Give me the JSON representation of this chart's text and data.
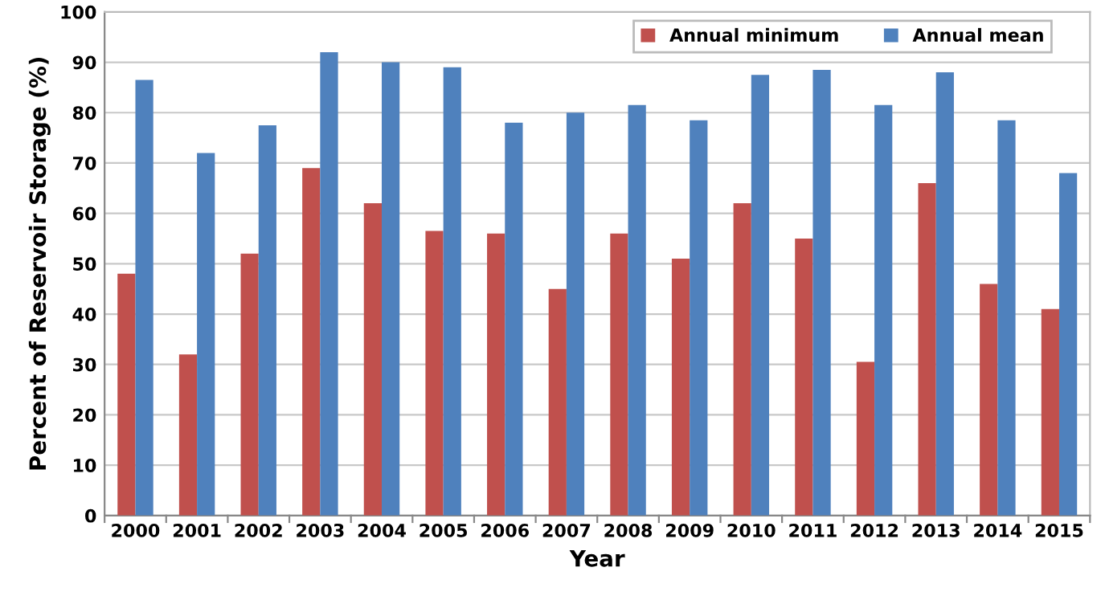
{
  "chart_data": {
    "type": "bar",
    "xlabel": "Year",
    "ylabel": "Percent of Reservoir Storage (%)",
    "categories": [
      "2000",
      "2001",
      "2002",
      "2003",
      "2004",
      "2005",
      "2006",
      "2007",
      "2008",
      "2009",
      "2010",
      "2011",
      "2012",
      "2013",
      "2014",
      "2015"
    ],
    "series": [
      {
        "name": "Annual minimum",
        "color": "#c0504d",
        "values": [
          48,
          32,
          52,
          69,
          62,
          56.5,
          56,
          45,
          56,
          51,
          62,
          55,
          30.5,
          66,
          46,
          41
        ]
      },
      {
        "name": "Annual mean",
        "color": "#4f81bd",
        "values": [
          86.5,
          72,
          77.5,
          92,
          90,
          89,
          78,
          80,
          81.5,
          78.5,
          87.5,
          88.5,
          81.5,
          88,
          78.5,
          68
        ]
      }
    ],
    "ylim": [
      0,
      100
    ],
    "yticks": [
      0,
      10,
      20,
      30,
      40,
      50,
      60,
      70,
      80,
      90,
      100
    ],
    "grid": "y",
    "legend": "top right"
  }
}
